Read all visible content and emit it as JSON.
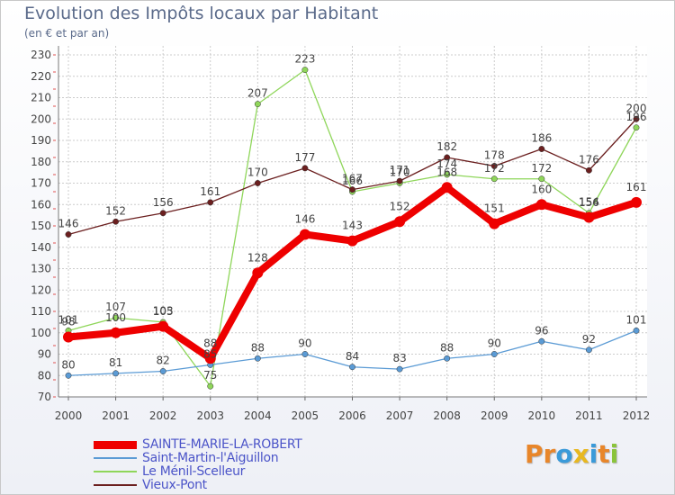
{
  "title": "Evolution des Impôts locaux par Habitant",
  "subtitle": "(en € et par an)",
  "logo": {
    "text": "Proxiti",
    "colors": [
      "#e8862a",
      "#e8862a",
      "#3a9ad9",
      "#e8b820",
      "#3a9ad9",
      "#e8862a",
      "#8ac43a"
    ]
  },
  "chart_data": {
    "type": "line",
    "title": "Evolution des Impôts locaux par Habitant",
    "subtitle": "(en € et par an)",
    "x": [
      "2000",
      "2001",
      "2002",
      "2003",
      "2004",
      "2005",
      "2006",
      "2007",
      "2008",
      "2009",
      "2010",
      "2011",
      "2012"
    ],
    "ylim": [
      70,
      230
    ],
    "yticks": [
      70,
      80,
      90,
      100,
      110,
      120,
      130,
      140,
      150,
      160,
      170,
      180,
      190,
      200,
      210,
      220,
      230
    ],
    "grid": true,
    "legend_position": "bottom-left",
    "series": [
      {
        "name": "SAINTE-MARIE-LA-ROBERT",
        "color": "#ee0000",
        "thick": true,
        "values": [
          98,
          100,
          103,
          88,
          128,
          146,
          143,
          152,
          168,
          151,
          160,
          154,
          161
        ],
        "labels": [
          "98",
          "100",
          "103",
          "88",
          "128",
          "146",
          "143",
          "152",
          "168",
          "151",
          "160",
          "154",
          "161"
        ]
      },
      {
        "name": "Saint-Martin-l'Aiguillon",
        "color": "#5b9bd5",
        "thick": false,
        "values": [
          80,
          81,
          82,
          85,
          88,
          90,
          84,
          83,
          88,
          90,
          96,
          92,
          101
        ],
        "labels": [
          "80",
          "81",
          "82",
          "85",
          "88",
          "90",
          "84",
          "83",
          "88",
          "90",
          "96",
          "92",
          "101"
        ]
      },
      {
        "name": "Le Ménil-Scelleur",
        "color": "#8fd65a",
        "thick": false,
        "values": [
          101,
          107,
          105,
          75,
          207,
          223,
          166,
          170,
          174,
          172,
          172,
          156,
          196
        ],
        "labels": [
          "101",
          "107",
          "105",
          "75",
          "207",
          "223",
          "166",
          "170",
          "174",
          "172",
          "172",
          "156",
          "196"
        ]
      },
      {
        "name": "Vieux-Pont",
        "color": "#6b1f1f",
        "thick": false,
        "values": [
          146,
          152,
          156,
          161,
          170,
          177,
          167,
          171,
          182,
          178,
          186,
          176,
          200
        ],
        "labels": [
          "146",
          "152",
          "156",
          "161",
          "170",
          "177",
          "167",
          "171",
          "182",
          "178",
          "186",
          "176",
          "200"
        ]
      }
    ]
  }
}
